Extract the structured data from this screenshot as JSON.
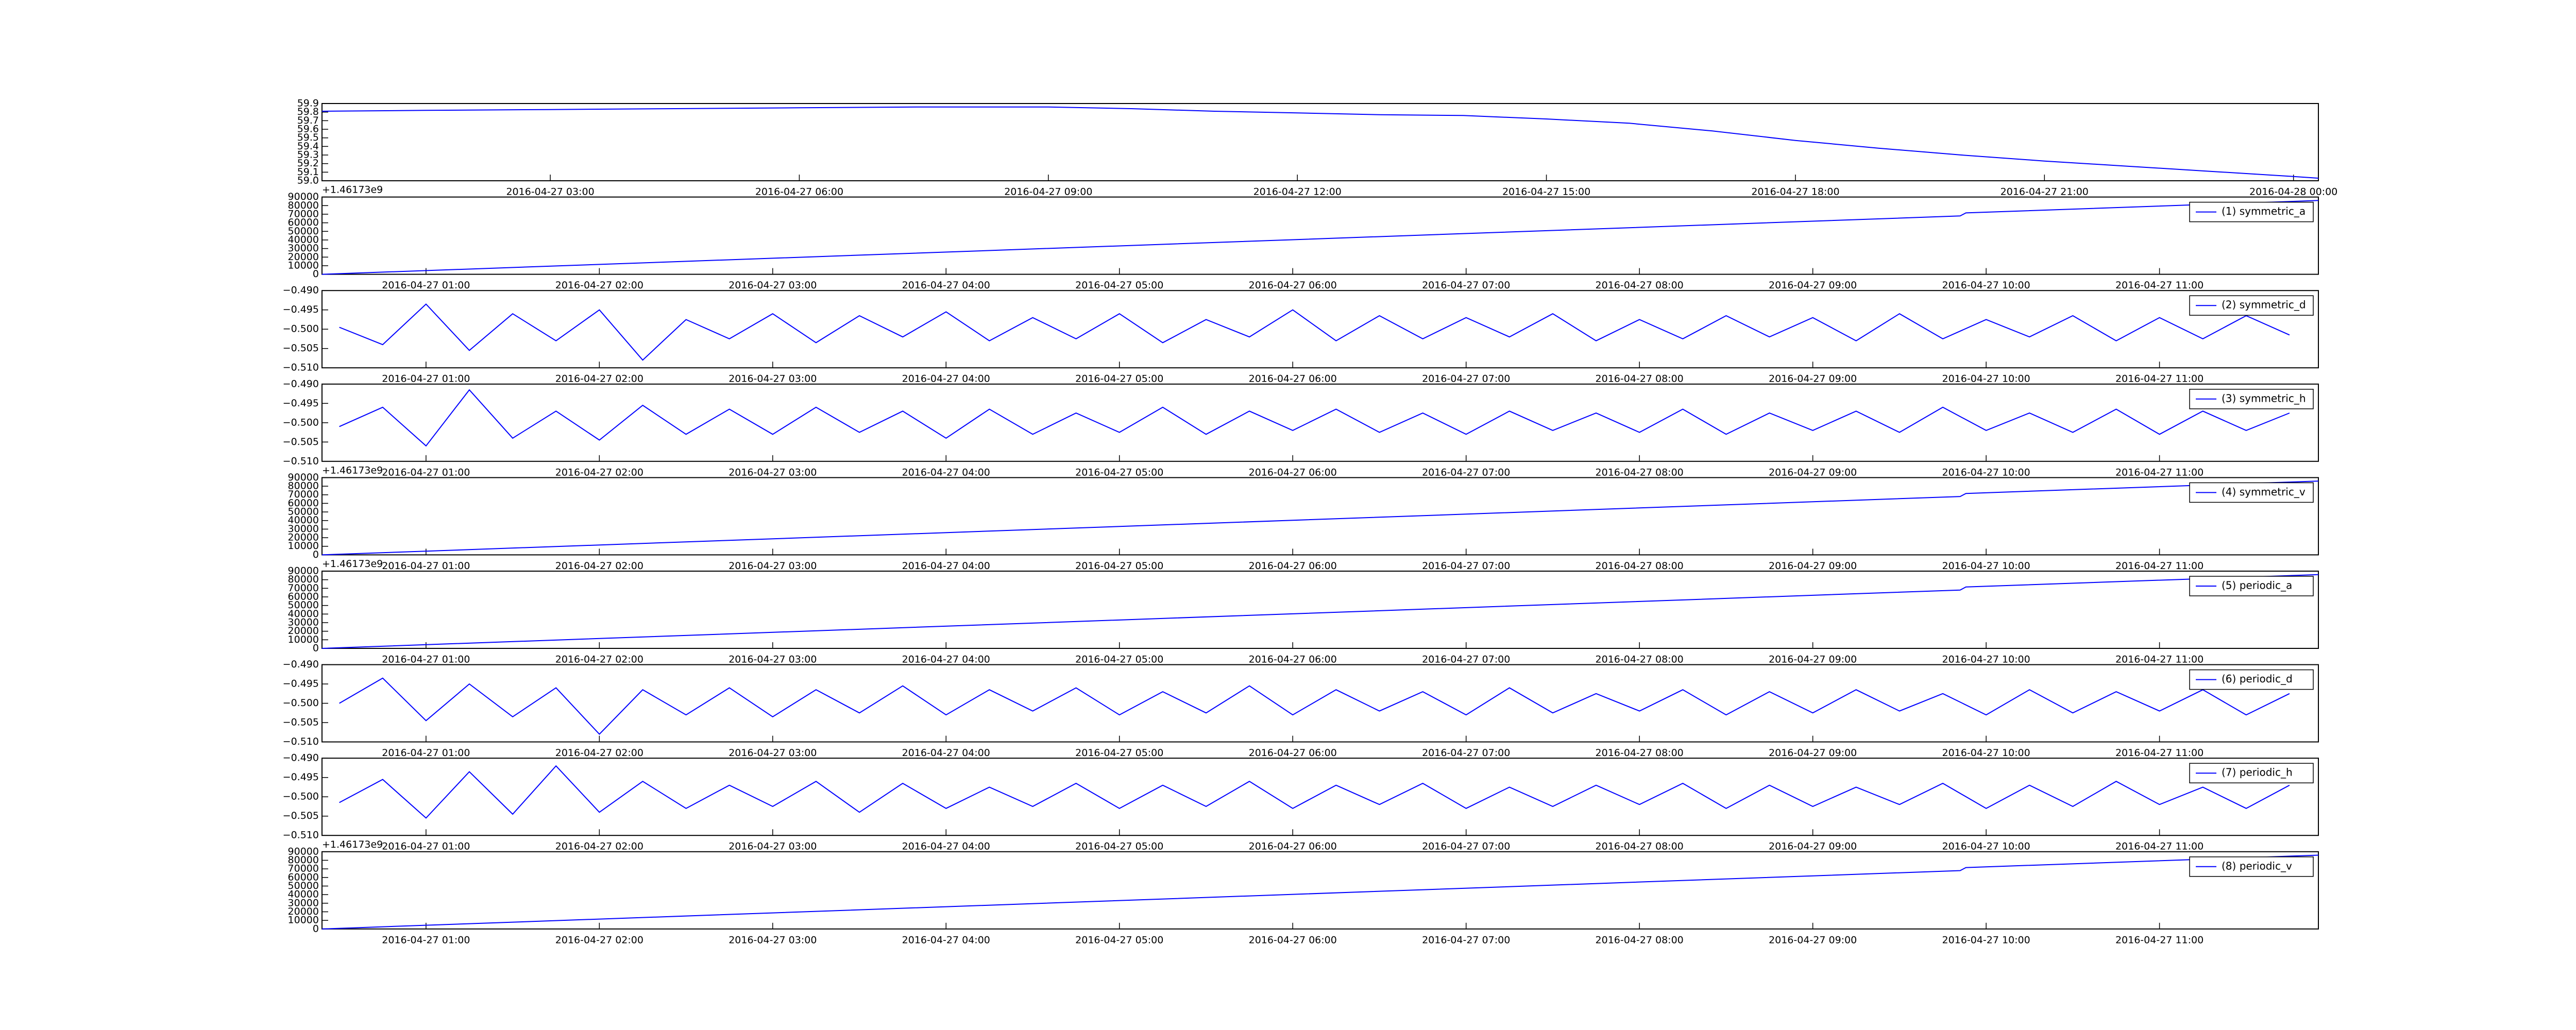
{
  "chart_data": [
    {
      "type": "line",
      "color": "#0000ff",
      "x": [
        "2016-04-27 00:15",
        "2016-04-27 01:30",
        "2016-04-27 03:00",
        "2016-04-27 04:30",
        "2016-04-27 06:00",
        "2016-04-27 07:30",
        "2016-04-27 09:00",
        "2016-04-27 10:00",
        "2016-04-27 11:00",
        "2016-04-27 12:00",
        "2016-04-27 13:00",
        "2016-04-27 14:00",
        "2016-04-27 15:00",
        "2016-04-27 16:00",
        "2016-04-27 17:00",
        "2016-04-27 18:00",
        "2016-04-27 19:00",
        "2016-04-27 20:00",
        "2016-04-27 21:00",
        "2016-04-27 22:00",
        "2016-04-27 23:00",
        "2016-04-28 00:00",
        "2016-04-28 00:18"
      ],
      "values": [
        59.81,
        59.82,
        59.83,
        59.84,
        59.85,
        59.86,
        59.86,
        59.84,
        59.81,
        59.79,
        59.77,
        59.76,
        59.72,
        59.67,
        59.58,
        59.47,
        59.38,
        59.3,
        59.23,
        59.17,
        59.11,
        59.05,
        59.03
      ],
      "xlim": [
        "2016-04-27 00:15",
        "2016-04-28 00:18"
      ],
      "xticks": [
        "2016-04-27 03:00",
        "2016-04-27 06:00",
        "2016-04-27 09:00",
        "2016-04-27 12:00",
        "2016-04-27 15:00",
        "2016-04-27 18:00",
        "2016-04-27 21:00",
        "2016-04-28 00:00"
      ],
      "ylim": [
        59.0,
        59.9
      ],
      "yticks": [
        {
          "value": 59.0,
          "label": "59.0"
        },
        59.1,
        59.2,
        59.3,
        59.4,
        59.5,
        59.6,
        59.7,
        59.8,
        59.9
      ]
    },
    {
      "type": "line",
      "offset_text": "+1.46173e9",
      "legend": "upper right",
      "x": [
        "2016-04-27 00:24",
        "2016-04-27 09:51",
        "2016-04-27 09:53",
        "2016-04-27 11:55"
      ],
      "series": [
        {
          "name": "(1) symmetric_a",
          "color": "#0000ff",
          "values": [
            0,
            68000,
            71500,
            86000
          ]
        }
      ],
      "xlim": [
        "2016-04-27 00:24",
        "2016-04-27 11:55"
      ],
      "xticks": [
        "2016-04-27 01:00",
        "2016-04-27 02:00",
        "2016-04-27 03:00",
        "2016-04-27 04:00",
        "2016-04-27 05:00",
        "2016-04-27 06:00",
        "2016-04-27 07:00",
        "2016-04-27 08:00",
        "2016-04-27 09:00",
        "2016-04-27 10:00",
        "2016-04-27 11:00"
      ],
      "ylim": [
        0,
        90000
      ],
      "yticks": [
        0,
        10000,
        20000,
        30000,
        40000,
        50000,
        60000,
        70000,
        80000,
        90000
      ]
    },
    {
      "type": "line",
      "legend": "upper right",
      "x": [
        "2016-04-27 00:30",
        "2016-04-27 00:45",
        "2016-04-27 01:00",
        "2016-04-27 01:15",
        "2016-04-27 01:30",
        "2016-04-27 01:45",
        "2016-04-27 02:00",
        "2016-04-27 02:15",
        "2016-04-27 02:30",
        "2016-04-27 02:45",
        "2016-04-27 03:00",
        "2016-04-27 03:15",
        "2016-04-27 03:30",
        "2016-04-27 03:45",
        "2016-04-27 04:00",
        "2016-04-27 04:15",
        "2016-04-27 04:30",
        "2016-04-27 04:45",
        "2016-04-27 05:00",
        "2016-04-27 05:15",
        "2016-04-27 05:30",
        "2016-04-27 05:45",
        "2016-04-27 06:00",
        "2016-04-27 06:15",
        "2016-04-27 06:30",
        "2016-04-27 06:45",
        "2016-04-27 07:00",
        "2016-04-27 07:15",
        "2016-04-27 07:30",
        "2016-04-27 07:45",
        "2016-04-27 08:00",
        "2016-04-27 08:15",
        "2016-04-27 08:30",
        "2016-04-27 08:45",
        "2016-04-27 09:00",
        "2016-04-27 09:15",
        "2016-04-27 09:30",
        "2016-04-27 09:45",
        "2016-04-27 10:00",
        "2016-04-27 10:15",
        "2016-04-27 10:30",
        "2016-04-27 10:45",
        "2016-04-27 11:00",
        "2016-04-27 11:15",
        "2016-04-27 11:30",
        "2016-04-27 11:45"
      ],
      "series": [
        {
          "name": "(2) symmetric_d",
          "color": "#0000ff",
          "values": [
            -0.4995,
            -0.504,
            -0.4935,
            -0.5055,
            -0.496,
            -0.503,
            -0.495,
            -0.508,
            -0.4975,
            -0.5025,
            -0.496,
            -0.5035,
            -0.4965,
            -0.502,
            -0.4955,
            -0.503,
            -0.497,
            -0.5025,
            -0.496,
            -0.5035,
            -0.4975,
            -0.502,
            -0.495,
            -0.503,
            -0.4965,
            -0.5025,
            -0.497,
            -0.502,
            -0.496,
            -0.503,
            -0.4975,
            -0.5025,
            -0.4965,
            -0.502,
            -0.497,
            -0.503,
            -0.496,
            -0.5025,
            -0.4975,
            -0.502,
            -0.4965,
            -0.503,
            -0.497,
            -0.5025,
            -0.4965,
            -0.5015
          ]
        }
      ],
      "xlim": [
        "2016-04-27 00:24",
        "2016-04-27 11:55"
      ],
      "xticks": [
        "2016-04-27 01:00",
        "2016-04-27 02:00",
        "2016-04-27 03:00",
        "2016-04-27 04:00",
        "2016-04-27 05:00",
        "2016-04-27 06:00",
        "2016-04-27 07:00",
        "2016-04-27 08:00",
        "2016-04-27 09:00",
        "2016-04-27 10:00",
        "2016-04-27 11:00"
      ],
      "ylim": [
        -0.51,
        -0.49
      ],
      "yticks": [
        {
          "value": -0.51,
          "label": "−0.510"
        },
        {
          "value": -0.505,
          "label": "−0.505"
        },
        {
          "value": -0.5,
          "label": "−0.500"
        },
        {
          "value": -0.495,
          "label": "−0.495"
        },
        {
          "value": -0.49,
          "label": "−0.490"
        }
      ]
    },
    {
      "type": "line",
      "legend": "upper right",
      "x": [
        "2016-04-27 00:30",
        "2016-04-27 00:45",
        "2016-04-27 01:00",
        "2016-04-27 01:15",
        "2016-04-27 01:30",
        "2016-04-27 01:45",
        "2016-04-27 02:00",
        "2016-04-27 02:15",
        "2016-04-27 02:30",
        "2016-04-27 02:45",
        "2016-04-27 03:00",
        "2016-04-27 03:15",
        "2016-04-27 03:30",
        "2016-04-27 03:45",
        "2016-04-27 04:00",
        "2016-04-27 04:15",
        "2016-04-27 04:30",
        "2016-04-27 04:45",
        "2016-04-27 05:00",
        "2016-04-27 05:15",
        "2016-04-27 05:30",
        "2016-04-27 05:45",
        "2016-04-27 06:00",
        "2016-04-27 06:15",
        "2016-04-27 06:30",
        "2016-04-27 06:45",
        "2016-04-27 07:00",
        "2016-04-27 07:15",
        "2016-04-27 07:30",
        "2016-04-27 07:45",
        "2016-04-27 08:00",
        "2016-04-27 08:15",
        "2016-04-27 08:30",
        "2016-04-27 08:45",
        "2016-04-27 09:00",
        "2016-04-27 09:15",
        "2016-04-27 09:30",
        "2016-04-27 09:45",
        "2016-04-27 10:00",
        "2016-04-27 10:15",
        "2016-04-27 10:30",
        "2016-04-27 10:45",
        "2016-04-27 11:00",
        "2016-04-27 11:15",
        "2016-04-27 11:30",
        "2016-04-27 11:45"
      ],
      "series": [
        {
          "name": "(3) symmetric_h",
          "color": "#0000ff",
          "values": [
            -0.501,
            -0.496,
            -0.506,
            -0.4915,
            -0.504,
            -0.497,
            -0.5045,
            -0.4955,
            -0.503,
            -0.4965,
            -0.503,
            -0.496,
            -0.5025,
            -0.497,
            -0.504,
            -0.4965,
            -0.503,
            -0.4975,
            -0.5025,
            -0.496,
            -0.503,
            -0.497,
            -0.502,
            -0.4965,
            -0.5025,
            -0.4975,
            -0.503,
            -0.497,
            -0.502,
            -0.4975,
            -0.5025,
            -0.4965,
            -0.503,
            -0.4975,
            -0.502,
            -0.497,
            -0.5025,
            -0.496,
            -0.502,
            -0.4975,
            -0.5025,
            -0.4965,
            -0.503,
            -0.497,
            -0.502,
            -0.4975
          ]
        }
      ],
      "xlim": [
        "2016-04-27 00:24",
        "2016-04-27 11:55"
      ],
      "xticks": [
        "2016-04-27 01:00",
        "2016-04-27 02:00",
        "2016-04-27 03:00",
        "2016-04-27 04:00",
        "2016-04-27 05:00",
        "2016-04-27 06:00",
        "2016-04-27 07:00",
        "2016-04-27 08:00",
        "2016-04-27 09:00",
        "2016-04-27 10:00",
        "2016-04-27 11:00"
      ],
      "ylim": [
        -0.51,
        -0.49
      ],
      "yticks": [
        {
          "value": -0.51,
          "label": "−0.510"
        },
        {
          "value": -0.505,
          "label": "−0.505"
        },
        {
          "value": -0.5,
          "label": "−0.500"
        },
        {
          "value": -0.495,
          "label": "−0.495"
        },
        {
          "value": -0.49,
          "label": "−0.490"
        }
      ]
    },
    {
      "type": "line",
      "offset_text": "+1.46173e9",
      "legend": "upper right",
      "x": [
        "2016-04-27 00:24",
        "2016-04-27 09:51",
        "2016-04-27 09:53",
        "2016-04-27 11:55"
      ],
      "series": [
        {
          "name": "(4) symmetric_v",
          "color": "#0000ff",
          "values": [
            0,
            68000,
            71500,
            86000
          ]
        }
      ],
      "xlim": [
        "2016-04-27 00:24",
        "2016-04-27 11:55"
      ],
      "xticks": [
        "2016-04-27 01:00",
        "2016-04-27 02:00",
        "2016-04-27 03:00",
        "2016-04-27 04:00",
        "2016-04-27 05:00",
        "2016-04-27 06:00",
        "2016-04-27 07:00",
        "2016-04-27 08:00",
        "2016-04-27 09:00",
        "2016-04-27 10:00",
        "2016-04-27 11:00"
      ],
      "ylim": [
        0,
        90000
      ],
      "yticks": [
        0,
        10000,
        20000,
        30000,
        40000,
        50000,
        60000,
        70000,
        80000,
        90000
      ]
    },
    {
      "type": "line",
      "offset_text": "+1.46173e9",
      "legend": "upper right",
      "x": [
        "2016-04-27 00:24",
        "2016-04-27 09:51",
        "2016-04-27 09:53",
        "2016-04-27 11:55"
      ],
      "series": [
        {
          "name": "(5) periodic_a",
          "color": "#0000ff",
          "values": [
            0,
            68000,
            71500,
            86000
          ]
        }
      ],
      "xlim": [
        "2016-04-27 00:24",
        "2016-04-27 11:55"
      ],
      "xticks": [
        "2016-04-27 01:00",
        "2016-04-27 02:00",
        "2016-04-27 03:00",
        "2016-04-27 04:00",
        "2016-04-27 05:00",
        "2016-04-27 06:00",
        "2016-04-27 07:00",
        "2016-04-27 08:00",
        "2016-04-27 09:00",
        "2016-04-27 10:00",
        "2016-04-27 11:00"
      ],
      "ylim": [
        0,
        90000
      ],
      "yticks": [
        0,
        10000,
        20000,
        30000,
        40000,
        50000,
        60000,
        70000,
        80000,
        90000
      ]
    },
    {
      "type": "line",
      "legend": "upper right",
      "x": [
        "2016-04-27 00:30",
        "2016-04-27 00:45",
        "2016-04-27 01:00",
        "2016-04-27 01:15",
        "2016-04-27 01:30",
        "2016-04-27 01:45",
        "2016-04-27 02:00",
        "2016-04-27 02:15",
        "2016-04-27 02:30",
        "2016-04-27 02:45",
        "2016-04-27 03:00",
        "2016-04-27 03:15",
        "2016-04-27 03:30",
        "2016-04-27 03:45",
        "2016-04-27 04:00",
        "2016-04-27 04:15",
        "2016-04-27 04:30",
        "2016-04-27 04:45",
        "2016-04-27 05:00",
        "2016-04-27 05:15",
        "2016-04-27 05:30",
        "2016-04-27 05:45",
        "2016-04-27 06:00",
        "2016-04-27 06:15",
        "2016-04-27 06:30",
        "2016-04-27 06:45",
        "2016-04-27 07:00",
        "2016-04-27 07:15",
        "2016-04-27 07:30",
        "2016-04-27 07:45",
        "2016-04-27 08:00",
        "2016-04-27 08:15",
        "2016-04-27 08:30",
        "2016-04-27 08:45",
        "2016-04-27 09:00",
        "2016-04-27 09:15",
        "2016-04-27 09:30",
        "2016-04-27 09:45",
        "2016-04-27 10:00",
        "2016-04-27 10:15",
        "2016-04-27 10:30",
        "2016-04-27 10:45",
        "2016-04-27 11:00",
        "2016-04-27 11:15",
        "2016-04-27 11:30",
        "2016-04-27 11:45"
      ],
      "series": [
        {
          "name": "(6) periodic_d",
          "color": "#0000ff",
          "values": [
            -0.5,
            -0.4935,
            -0.5045,
            -0.495,
            -0.5035,
            -0.496,
            -0.508,
            -0.4965,
            -0.503,
            -0.496,
            -0.5035,
            -0.4965,
            -0.5025,
            -0.4955,
            -0.503,
            -0.4965,
            -0.502,
            -0.496,
            -0.503,
            -0.497,
            -0.5025,
            -0.4955,
            -0.503,
            -0.4965,
            -0.502,
            -0.497,
            -0.503,
            -0.496,
            -0.5025,
            -0.4975,
            -0.502,
            -0.4965,
            -0.503,
            -0.497,
            -0.5025,
            -0.4965,
            -0.502,
            -0.4975,
            -0.503,
            -0.4965,
            -0.5025,
            -0.497,
            -0.502,
            -0.4965,
            -0.503,
            -0.4975
          ]
        }
      ],
      "xlim": [
        "2016-04-27 00:24",
        "2016-04-27 11:55"
      ],
      "xticks": [
        "2016-04-27 01:00",
        "2016-04-27 02:00",
        "2016-04-27 03:00",
        "2016-04-27 04:00",
        "2016-04-27 05:00",
        "2016-04-27 06:00",
        "2016-04-27 07:00",
        "2016-04-27 08:00",
        "2016-04-27 09:00",
        "2016-04-27 10:00",
        "2016-04-27 11:00"
      ],
      "ylim": [
        -0.51,
        -0.49
      ],
      "yticks": [
        {
          "value": -0.51,
          "label": "−0.510"
        },
        {
          "value": -0.505,
          "label": "−0.505"
        },
        {
          "value": -0.5,
          "label": "−0.500"
        },
        {
          "value": -0.495,
          "label": "−0.495"
        },
        {
          "value": -0.49,
          "label": "−0.490"
        }
      ]
    },
    {
      "type": "line",
      "legend": "upper right",
      "x": [
        "2016-04-27 00:30",
        "2016-04-27 00:45",
        "2016-04-27 01:00",
        "2016-04-27 01:15",
        "2016-04-27 01:30",
        "2016-04-27 01:45",
        "2016-04-27 02:00",
        "2016-04-27 02:15",
        "2016-04-27 02:30",
        "2016-04-27 02:45",
        "2016-04-27 03:00",
        "2016-04-27 03:15",
        "2016-04-27 03:30",
        "2016-04-27 03:45",
        "2016-04-27 04:00",
        "2016-04-27 04:15",
        "2016-04-27 04:30",
        "2016-04-27 04:45",
        "2016-04-27 05:00",
        "2016-04-27 05:15",
        "2016-04-27 05:30",
        "2016-04-27 05:45",
        "2016-04-27 06:00",
        "2016-04-27 06:15",
        "2016-04-27 06:30",
        "2016-04-27 06:45",
        "2016-04-27 07:00",
        "2016-04-27 07:15",
        "2016-04-27 07:30",
        "2016-04-27 07:45",
        "2016-04-27 08:00",
        "2016-04-27 08:15",
        "2016-04-27 08:30",
        "2016-04-27 08:45",
        "2016-04-27 09:00",
        "2016-04-27 09:15",
        "2016-04-27 09:30",
        "2016-04-27 09:45",
        "2016-04-27 10:00",
        "2016-04-27 10:15",
        "2016-04-27 10:30",
        "2016-04-27 10:45",
        "2016-04-27 11:00",
        "2016-04-27 11:15",
        "2016-04-27 11:30",
        "2016-04-27 11:45"
      ],
      "series": [
        {
          "name": "(7) periodic_h",
          "color": "#0000ff",
          "values": [
            -0.5015,
            -0.4955,
            -0.5055,
            -0.4935,
            -0.5045,
            -0.492,
            -0.504,
            -0.496,
            -0.503,
            -0.497,
            -0.5025,
            -0.496,
            -0.504,
            -0.4965,
            -0.503,
            -0.4975,
            -0.5025,
            -0.4965,
            -0.503,
            -0.497,
            -0.5025,
            -0.496,
            -0.503,
            -0.497,
            -0.502,
            -0.4965,
            -0.503,
            -0.4975,
            -0.5025,
            -0.497,
            -0.502,
            -0.4965,
            -0.503,
            -0.497,
            -0.5025,
            -0.4975,
            -0.502,
            -0.4965,
            -0.503,
            -0.497,
            -0.5025,
            -0.496,
            -0.502,
            -0.4975,
            -0.503,
            -0.497
          ]
        }
      ],
      "xlim": [
        "2016-04-27 00:24",
        "2016-04-27 11:55"
      ],
      "xticks": [
        "2016-04-27 01:00",
        "2016-04-27 02:00",
        "2016-04-27 03:00",
        "2016-04-27 04:00",
        "2016-04-27 05:00",
        "2016-04-27 06:00",
        "2016-04-27 07:00",
        "2016-04-27 08:00",
        "2016-04-27 09:00",
        "2016-04-27 10:00",
        "2016-04-27 11:00"
      ],
      "ylim": [
        -0.51,
        -0.49
      ],
      "yticks": [
        {
          "value": -0.51,
          "label": "−0.510"
        },
        {
          "value": -0.505,
          "label": "−0.505"
        },
        {
          "value": -0.5,
          "label": "−0.500"
        },
        {
          "value": -0.495,
          "label": "−0.495"
        },
        {
          "value": -0.49,
          "label": "−0.490"
        }
      ]
    },
    {
      "type": "line",
      "offset_text": "+1.46173e9",
      "legend": "upper right",
      "x": [
        "2016-04-27 00:24",
        "2016-04-27 09:51",
        "2016-04-27 09:53",
        "2016-04-27 11:55"
      ],
      "series": [
        {
          "name": "(8) periodic_v",
          "color": "#0000ff",
          "values": [
            0,
            68000,
            71500,
            86000
          ]
        }
      ],
      "xlim": [
        "2016-04-27 00:24",
        "2016-04-27 11:55"
      ],
      "xticks": [
        "2016-04-27 01:00",
        "2016-04-27 02:00",
        "2016-04-27 03:00",
        "2016-04-27 04:00",
        "2016-04-27 05:00",
        "2016-04-27 06:00",
        "2016-04-27 07:00",
        "2016-04-27 08:00",
        "2016-04-27 09:00",
        "2016-04-27 10:00",
        "2016-04-27 11:00"
      ],
      "ylim": [
        0,
        90000
      ],
      "yticks": [
        0,
        10000,
        20000,
        30000,
        40000,
        50000,
        60000,
        70000,
        80000,
        90000
      ]
    }
  ]
}
